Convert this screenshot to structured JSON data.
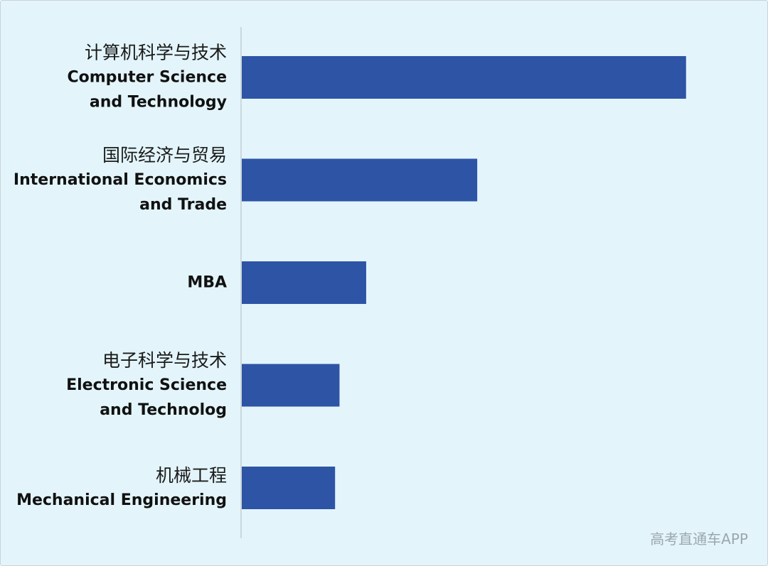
{
  "chart_data": {
    "type": "bar",
    "orientation": "horizontal",
    "categories": [
      {
        "cn": "计算机科学与技术",
        "en": [
          "Computer Science",
          "and Technology"
        ]
      },
      {
        "cn": "国际经济与贸易",
        "en": [
          "International Economics",
          "and Trade"
        ]
      },
      {
        "cn": "",
        "en": [
          "MBA"
        ]
      },
      {
        "cn": "电子科学与技术",
        "en": [
          "Electronic Science",
          "and Technolog"
        ]
      },
      {
        "cn": "机械工程",
        "en": [
          "Mechanical Engineering"
        ]
      }
    ],
    "values": [
      100,
      53,
      28,
      22,
      21
    ],
    "xlim": [
      0,
      105
    ],
    "title": "",
    "xlabel": "",
    "ylabel": "",
    "grid": false,
    "bar_color": "#2e54a6",
    "axis_color": "#b9c6cc"
  },
  "watermark": "高考直通车APP",
  "colors": {
    "background": "#e3f5fb",
    "text": "#111111"
  }
}
